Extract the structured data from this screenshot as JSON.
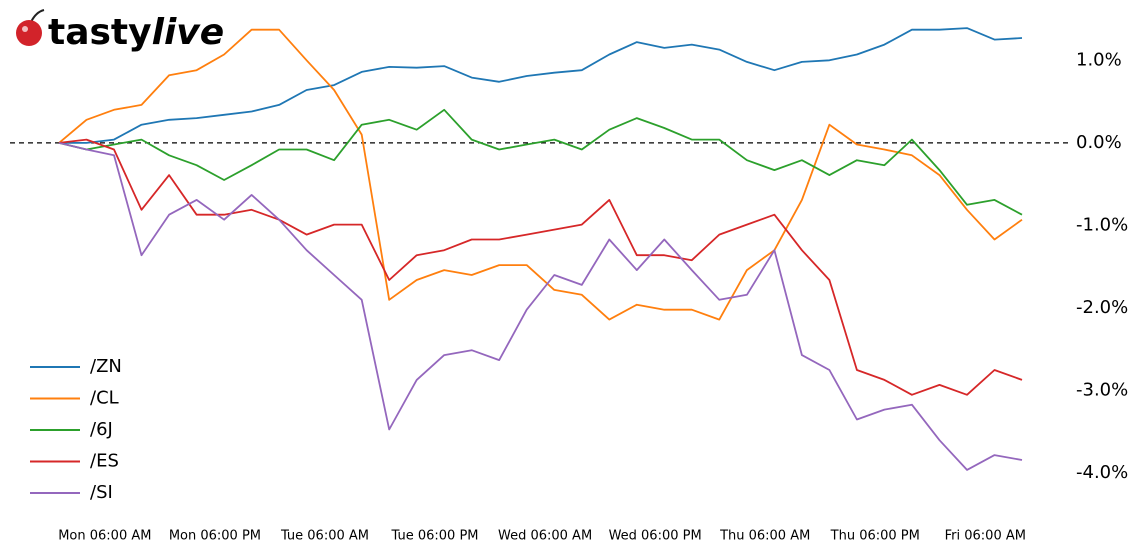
{
  "logo": [
    "tasty",
    "live"
  ],
  "chart_data": {
    "type": "line",
    "x": [
      1,
      4,
      7,
      10,
      13,
      16,
      19,
      22,
      25,
      28,
      31,
      34,
      37,
      40,
      43,
      46,
      49,
      52,
      55,
      58,
      61,
      64,
      67,
      70,
      73,
      76,
      79,
      82,
      85,
      88,
      91,
      94,
      97,
      100,
      103,
      106
    ],
    "xlim": [
      1,
      106
    ],
    "xticks": [
      {
        "value": 6,
        "label": "Mon 06:00 AM"
      },
      {
        "value": 18,
        "label": "Mon 06:00 PM"
      },
      {
        "value": 30,
        "label": "Tue 06:00 AM"
      },
      {
        "value": 42,
        "label": "Tue 06:00 PM"
      },
      {
        "value": 54,
        "label": "Wed 06:00 AM"
      },
      {
        "value": 66,
        "label": "Wed 06:00 PM"
      },
      {
        "value": 78,
        "label": "Thu 06:00 AM"
      },
      {
        "value": 90,
        "label": "Thu 06:00 PM"
      },
      {
        "value": 102,
        "label": "Fri 06:00 AM"
      }
    ],
    "ylim": [
      -4.3,
      1.5
    ],
    "yticks": [
      {
        "value": 1,
        "label": "1.0%"
      },
      {
        "value": 0,
        "label": "0.0%"
      },
      {
        "value": -1,
        "label": "-1.0%"
      },
      {
        "value": -2,
        "label": "-2.0%"
      },
      {
        "value": -3,
        "label": "-3.0%"
      },
      {
        "value": -4,
        "label": "-4.0%"
      }
    ],
    "reference_line": 0,
    "legend": "lower left",
    "series": [
      {
        "name": "/ZN",
        "color": "#1f77b4",
        "values": [
          0,
          0,
          0.04,
          0.22,
          0.28,
          0.3,
          0.34,
          0.38,
          0.46,
          0.64,
          0.7,
          0.86,
          0.92,
          0.91,
          0.93,
          0.79,
          0.74,
          0.81,
          0.85,
          0.88,
          1.07,
          1.22,
          1.15,
          1.19,
          1.13,
          0.98,
          0.88,
          0.98,
          1.0,
          1.07,
          1.19,
          1.37,
          1.37,
          1.39,
          1.25,
          1.27
        ]
      },
      {
        "name": "/CL",
        "color": "#ff7f0e",
        "values": [
          0,
          0.28,
          0.4,
          0.46,
          0.82,
          0.88,
          1.07,
          1.37,
          1.37,
          1.0,
          0.64,
          0.1,
          -1.9,
          -1.66,
          -1.54,
          -1.6,
          -1.48,
          -1.48,
          -1.78,
          -1.84,
          -2.14,
          -1.96,
          -2.02,
          -2.02,
          -2.14,
          -1.54,
          -1.3,
          -0.69,
          0.22,
          -0.02,
          -0.08,
          -0.15,
          -0.39,
          -0.81,
          -1.17,
          -0.93
        ]
      },
      {
        "name": "/6J",
        "color": "#2ca02c",
        "values": [
          0,
          -0.08,
          -0.02,
          0.04,
          -0.15,
          -0.27,
          -0.45,
          -0.27,
          -0.08,
          -0.08,
          -0.21,
          0.22,
          0.28,
          0.16,
          0.4,
          0.04,
          -0.08,
          -0.02,
          0.04,
          -0.08,
          0.16,
          0.3,
          0.18,
          0.04,
          0.04,
          -0.21,
          -0.33,
          -0.21,
          -0.39,
          -0.21,
          -0.27,
          0.04,
          -0.33,
          -0.75,
          -0.69,
          -0.87
        ]
      },
      {
        "name": "/ES",
        "color": "#d62728",
        "values": [
          0,
          0.04,
          -0.08,
          -0.81,
          -0.39,
          -0.87,
          -0.87,
          -0.81,
          -0.93,
          -1.11,
          -0.99,
          -0.99,
          -1.66,
          -1.36,
          -1.3,
          -1.17,
          -1.17,
          -1.11,
          -1.05,
          -0.99,
          -0.69,
          -1.36,
          -1.36,
          -1.42,
          -1.11,
          -0.99,
          -0.87,
          -1.3,
          -1.66,
          -2.75,
          -2.87,
          -3.05,
          -2.93,
          -3.05,
          -2.75,
          -2.87
        ]
      },
      {
        "name": "/SI",
        "color": "#9467bd",
        "values": [
          0,
          -0.08,
          -0.15,
          -1.36,
          -0.87,
          -0.69,
          -0.93,
          -0.63,
          -0.93,
          -1.3,
          -1.6,
          -1.9,
          -3.47,
          -2.87,
          -2.57,
          -2.51,
          -2.63,
          -2.02,
          -1.6,
          -1.72,
          -1.17,
          -1.54,
          -1.17,
          -1.54,
          -1.9,
          -1.84,
          -1.3,
          -2.57,
          -2.75,
          -3.35,
          -3.23,
          -3.17,
          -3.6,
          -3.96,
          -3.78,
          -3.84
        ]
      }
    ]
  }
}
